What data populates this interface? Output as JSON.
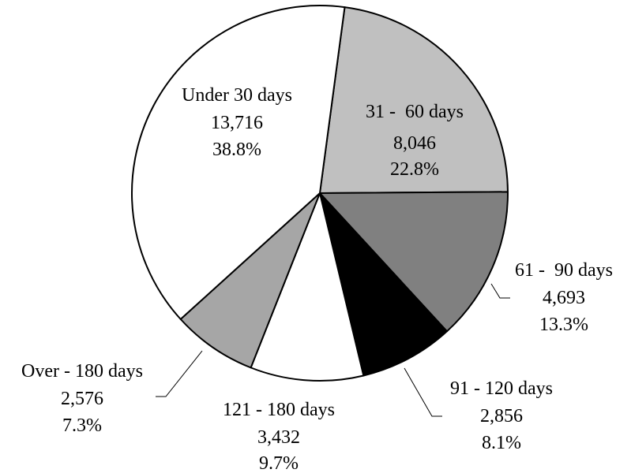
{
  "chart_data": {
    "type": "pie",
    "title": "",
    "start_angle_deg": 7.6,
    "direction": "clockwise",
    "slices": [
      {
        "label": "31 -  60 days",
        "value_text": "8,046",
        "percent_text": "22.8%",
        "value": 8046,
        "percent": 22.8,
        "color": "#c0c0c0"
      },
      {
        "label": "61 -  90 days",
        "value_text": "4,693",
        "percent_text": "13.3%",
        "value": 4693,
        "percent": 13.3,
        "color": "#808080"
      },
      {
        "label": "91 - 120 days",
        "value_text": "2,856",
        "percent_text": "8.1%",
        "value": 2856,
        "percent": 8.1,
        "color": "#000000"
      },
      {
        "label": "121 - 180 days",
        "value_text": "3,432",
        "percent_text": "9.7%",
        "value": 3432,
        "percent": 9.7,
        "color": "#ffffff"
      },
      {
        "label": "Over - 180 days",
        "value_text": "2,576",
        "percent_text": "7.3%",
        "value": 2576,
        "percent": 7.3,
        "color": "#a6a6a6"
      },
      {
        "label": "Under 30 days",
        "value_text": "13,716",
        "percent_text": "38.8%",
        "value": 13716,
        "percent": 38.8,
        "color": "#ffffff"
      }
    ]
  }
}
